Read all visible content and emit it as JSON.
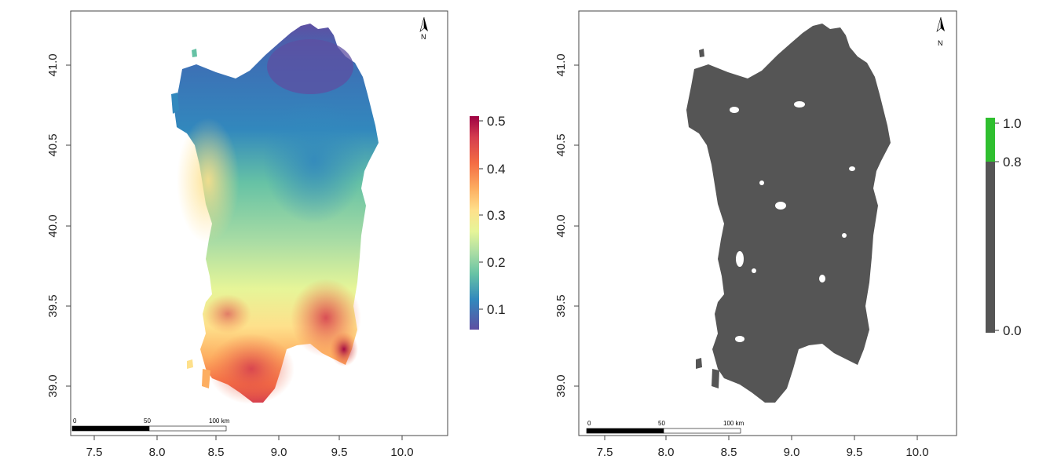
{
  "maps": [
    {
      "id": "left",
      "x_ticks": [
        "7.5",
        "8.0",
        "8.5",
        "9.0",
        "9.5",
        "10.0"
      ],
      "y_ticks": [
        "41.0",
        "40.5",
        "40.0",
        "39.5",
        "39.0"
      ],
      "north_label": "N",
      "scalebar_labels": [
        "0",
        "50",
        "100 km"
      ],
      "legend": {
        "type": "continuous",
        "tick_labels": [
          "0.5",
          "0.4",
          "0.3",
          "0.2",
          "0.1"
        ],
        "colors": [
          "#9e0142",
          "#d53e4f",
          "#f46d43",
          "#fdae61",
          "#fee08b",
          "#e6f598",
          "#abdda4",
          "#66c2a5",
          "#3288bd",
          "#5e4fa2"
        ]
      }
    },
    {
      "id": "right",
      "x_ticks": [
        "7.5",
        "8.0",
        "8.5",
        "9.0",
        "9.5",
        "10.0"
      ],
      "y_ticks": [
        "41.0",
        "40.5",
        "40.0",
        "39.5",
        "39.0"
      ],
      "north_label": "N",
      "scalebar_labels": [
        "0",
        "50",
        "100 km"
      ],
      "legend": {
        "type": "binned",
        "tick_labels": [
          "1.0",
          "0.8",
          "0.0"
        ],
        "colors": [
          "#2fbf2f",
          "#555555"
        ]
      }
    }
  ]
}
